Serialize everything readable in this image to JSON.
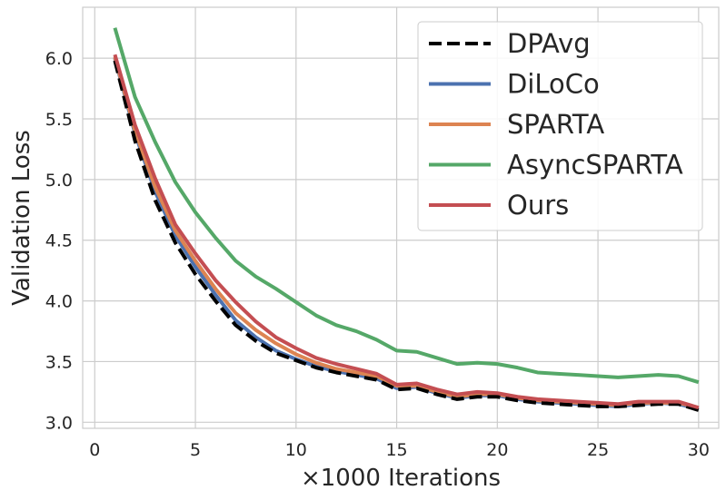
{
  "chart_data": {
    "type": "line",
    "title": "",
    "xlabel": "×1000 Iterations",
    "ylabel": "Validation Loss",
    "xlim": [
      -0.6,
      31.0
    ],
    "ylim": [
      2.95,
      6.42
    ],
    "xticks": [
      0,
      5,
      10,
      15,
      20,
      25,
      30
    ],
    "xtick_labels": [
      "0",
      "5",
      "10",
      "15",
      "20",
      "25",
      "30"
    ],
    "yticks": [
      3.0,
      3.5,
      4.0,
      4.5,
      5.0,
      5.5,
      6.0
    ],
    "ytick_labels": [
      "3.0",
      "3.5",
      "4.0",
      "4.5",
      "5.0",
      "5.5",
      "6.0"
    ],
    "grid": true,
    "legend_position": "top-right",
    "x": [
      1,
      2,
      3,
      4,
      5,
      6,
      7,
      8,
      9,
      10,
      11,
      12,
      13,
      14,
      15,
      16,
      17,
      18,
      19,
      20,
      21,
      22,
      23,
      24,
      25,
      26,
      27,
      28,
      29,
      30
    ],
    "series": [
      {
        "name": "DPAvg",
        "color": "#000000",
        "dashed": true,
        "values": [
          5.98,
          5.32,
          4.83,
          4.48,
          4.22,
          4.0,
          3.8,
          3.67,
          3.57,
          3.51,
          3.45,
          3.41,
          3.38,
          3.35,
          3.27,
          3.28,
          3.23,
          3.19,
          3.21,
          3.21,
          3.18,
          3.16,
          3.15,
          3.14,
          3.13,
          3.13,
          3.14,
          3.15,
          3.15,
          3.1
        ]
      },
      {
        "name": "DiLoCo",
        "color": "#4c72b0",
        "dashed": false,
        "values": [
          6.0,
          5.38,
          4.9,
          4.54,
          4.28,
          4.05,
          3.84,
          3.7,
          3.59,
          3.52,
          3.46,
          3.42,
          3.39,
          3.36,
          3.28,
          3.29,
          3.24,
          3.2,
          3.22,
          3.22,
          3.19,
          3.17,
          3.16,
          3.15,
          3.14,
          3.13,
          3.15,
          3.16,
          3.15,
          3.11
        ]
      },
      {
        "name": "SPARTA",
        "color": "#dd8452",
        "dashed": false,
        "values": [
          6.01,
          5.4,
          4.94,
          4.58,
          4.33,
          4.1,
          3.9,
          3.76,
          3.65,
          3.56,
          3.49,
          3.44,
          3.41,
          3.38,
          3.3,
          3.3,
          3.25,
          3.21,
          3.23,
          3.23,
          3.2,
          3.18,
          3.17,
          3.16,
          3.15,
          3.14,
          3.16,
          3.16,
          3.16,
          3.12
        ]
      },
      {
        "name": "AsyncSPARTA",
        "color": "#55a868",
        "dashed": false,
        "values": [
          6.25,
          5.68,
          5.31,
          4.98,
          4.73,
          4.52,
          4.33,
          4.2,
          4.1,
          3.99,
          3.88,
          3.8,
          3.75,
          3.68,
          3.59,
          3.58,
          3.53,
          3.48,
          3.49,
          3.48,
          3.45,
          3.41,
          3.4,
          3.39,
          3.38,
          3.37,
          3.38,
          3.39,
          3.38,
          3.33
        ]
      },
      {
        "name": "Ours",
        "color": "#c44e52",
        "dashed": false,
        "values": [
          6.03,
          5.45,
          5.01,
          4.63,
          4.39,
          4.17,
          3.99,
          3.83,
          3.7,
          3.61,
          3.53,
          3.48,
          3.44,
          3.4,
          3.31,
          3.32,
          3.27,
          3.23,
          3.25,
          3.24,
          3.21,
          3.19,
          3.18,
          3.17,
          3.16,
          3.15,
          3.17,
          3.17,
          3.17,
          3.12
        ]
      }
    ]
  }
}
